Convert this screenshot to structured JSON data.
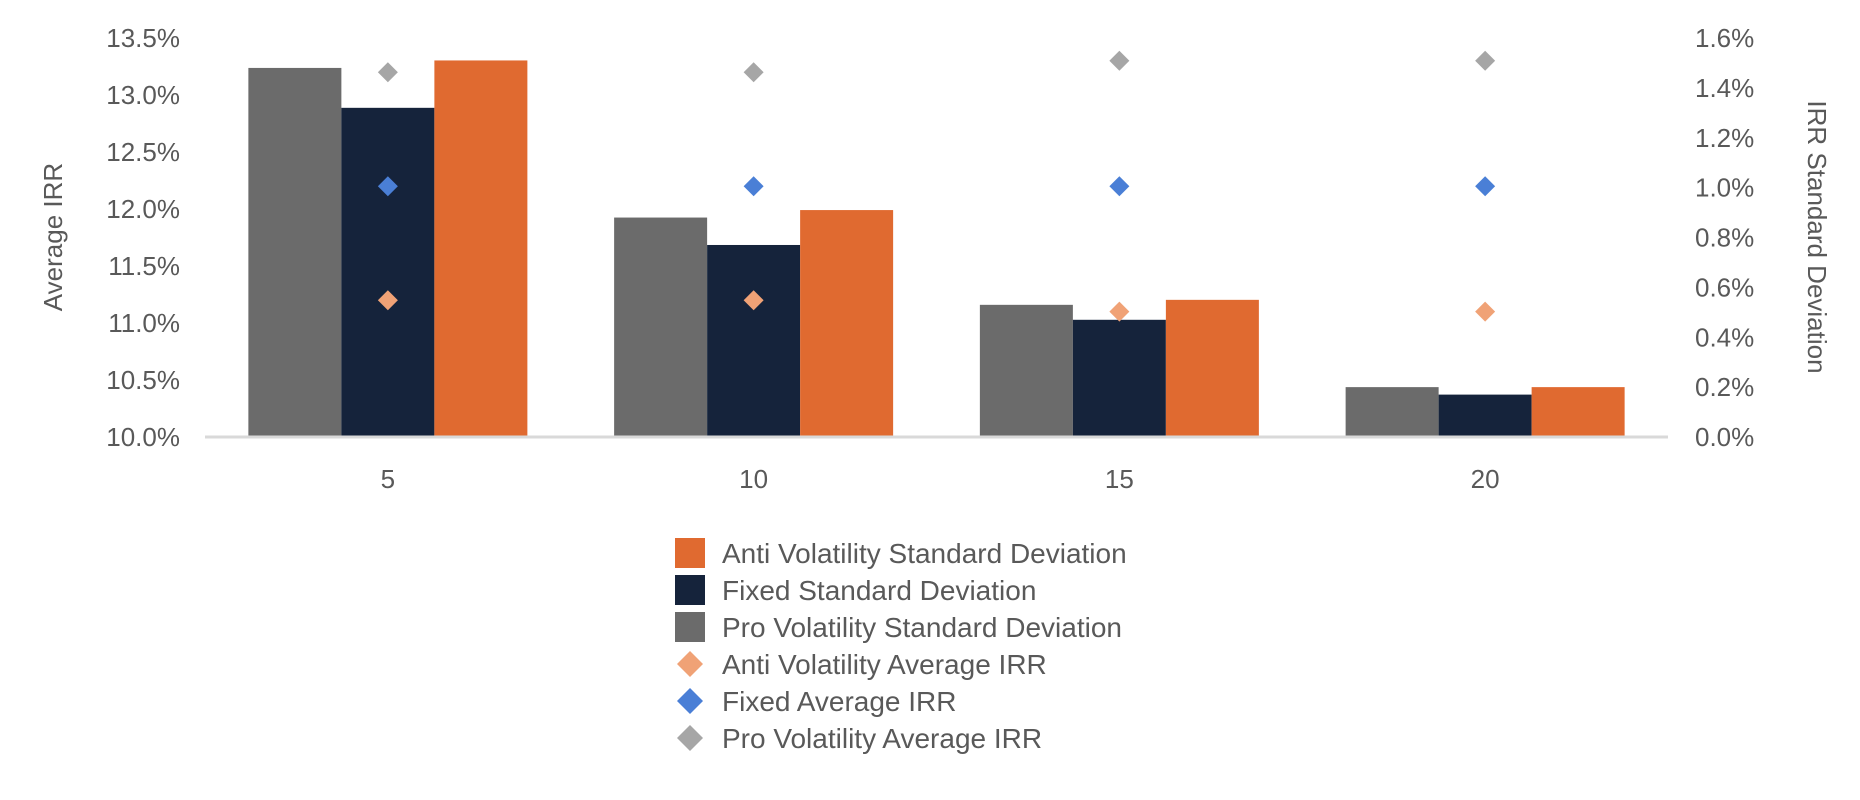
{
  "chart_data": {
    "type": "bar",
    "title": "",
    "categories": [
      "5",
      "10",
      "15",
      "20"
    ],
    "xlabel": "",
    "ylabel": "Average IRR",
    "y2label": "IRR Standard Deviation",
    "ylim": [
      10.0,
      13.5
    ],
    "y2lim": [
      0.0,
      1.6
    ],
    "yticks": [
      "10.0%",
      "10.5%",
      "11.0%",
      "11.5%",
      "12.0%",
      "12.5%",
      "13.0%",
      "13.5%"
    ],
    "y2ticks": [
      "0.0%",
      "0.2%",
      "0.4%",
      "0.6%",
      "0.8%",
      "1.0%",
      "1.2%",
      "1.4%",
      "1.6%"
    ],
    "bar_series": [
      {
        "name": "Pro Volatility Standard Deviation",
        "axis": "right",
        "color": "#6b6b6b",
        "values": [
          1.48,
          0.88,
          0.53,
          0.2
        ]
      },
      {
        "name": "Fixed Standard Deviation",
        "axis": "right",
        "color": "#15233b",
        "values": [
          1.32,
          0.77,
          0.47,
          0.17
        ]
      },
      {
        "name": "Anti Volatility Standard Deviation",
        "axis": "right",
        "color": "#e06a30",
        "values": [
          1.51,
          0.91,
          0.55,
          0.2
        ]
      }
    ],
    "point_series": [
      {
        "name": "Pro Volatility Average IRR",
        "axis": "left",
        "color": "#a6a6a6",
        "values": [
          13.2,
          13.2,
          13.3,
          13.3
        ]
      },
      {
        "name": "Fixed Average IRR",
        "axis": "left",
        "color": "#4a7fd6",
        "values": [
          12.2,
          12.2,
          12.2,
          12.2
        ]
      },
      {
        "name": "Anti Volatility Average IRR",
        "axis": "left",
        "color": "#f0a276",
        "values": [
          11.2,
          11.2,
          11.1,
          11.1
        ]
      }
    ],
    "legend": {
      "position": "bottom",
      "items": [
        {
          "label": "Anti Volatility Standard Deviation",
          "marker": "square",
          "color": "#e06a30"
        },
        {
          "label": "Fixed Standard Deviation",
          "marker": "square",
          "color": "#15233b"
        },
        {
          "label": "Pro Volatility Standard Deviation",
          "marker": "square",
          "color": "#6b6b6b"
        },
        {
          "label": "Anti Volatility Average IRR",
          "marker": "diamond",
          "color": "#f0a276"
        },
        {
          "label": "Fixed Average IRR",
          "marker": "diamond",
          "color": "#4a7fd6"
        },
        {
          "label": "Pro Volatility Average IRR",
          "marker": "diamond",
          "color": "#a6a6a6"
        }
      ]
    },
    "grid": false
  }
}
